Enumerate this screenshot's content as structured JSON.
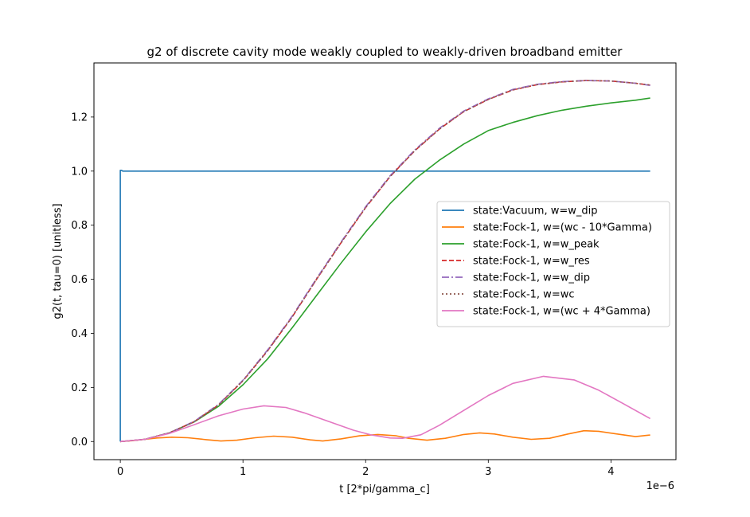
{
  "chart_data": {
    "type": "line",
    "title": "g2 of discrete cavity mode weakly coupled to weakly-driven broadband emitter",
    "xlabel": "t [2*pi/gamma_c]",
    "ylabel": "g2(t, tau=0) [unitless]",
    "x_offset_label": "1e−6",
    "xlim": [
      -2.15e-07,
      4.53e-06
    ],
    "ylim": [
      -0.067,
      1.4
    ],
    "xticks": [
      0,
      1e-06,
      2e-06,
      3e-06,
      4e-06
    ],
    "xtick_labels": [
      "0",
      "1",
      "2",
      "3",
      "4"
    ],
    "yticks": [
      0.0,
      0.2,
      0.4,
      0.6,
      0.8,
      1.0,
      1.2
    ],
    "ytick_labels": [
      "0.0",
      "0.2",
      "0.4",
      "0.6",
      "0.8",
      "1.0",
      "1.2"
    ],
    "grid": false,
    "legend_position": "center-right",
    "series": [
      {
        "name": "state:Vacuum, w=w_dip",
        "color": "#1f77b4",
        "dash": "solid",
        "x": [
          0,
          0,
          1e-08,
          2e-08,
          2e-07,
          1e-06,
          2e-06,
          3e-06,
          4e-06,
          4.32e-06
        ],
        "y": [
          0,
          1.003,
          1.003,
          1.0,
          1.0,
          1.0,
          1.0,
          1.0,
          1.0,
          1.0
        ]
      },
      {
        "name": "state:Fock-1, w=(wc - 10*Gamma)",
        "color": "#ff7f0e",
        "dash": "solid",
        "x": [
          0,
          1e-07,
          2e-07,
          3e-07,
          4.2e-07,
          5.5e-07,
          7e-07,
          8.2e-07,
          9.5e-07,
          1.1e-06,
          1.25e-06,
          1.4e-06,
          1.55e-06,
          1.65e-06,
          1.8e-06,
          1.95e-06,
          2.1e-06,
          2.25e-06,
          2.35e-06,
          2.5e-06,
          2.65e-06,
          2.8e-06,
          2.93e-06,
          3.05e-06,
          3.2e-06,
          3.35e-06,
          3.5e-06,
          3.65e-06,
          3.78e-06,
          3.9e-06,
          4.05e-06,
          4.2e-06,
          4.32e-06
        ],
        "y": [
          0,
          0.003,
          0.008,
          0.013,
          0.016,
          0.014,
          0.007,
          0.002,
          0.005,
          0.014,
          0.02,
          0.016,
          0.006,
          0.002,
          0.01,
          0.021,
          0.026,
          0.021,
          0.012,
          0.005,
          0.012,
          0.026,
          0.032,
          0.028,
          0.016,
          0.008,
          0.012,
          0.028,
          0.04,
          0.038,
          0.028,
          0.018,
          0.024
        ]
      },
      {
        "name": "state:Fock-1, w=w_peak",
        "color": "#2ca02c",
        "dash": "solid",
        "x": [
          0,
          2e-07,
          4e-07,
          6e-07,
          8e-07,
          1e-06,
          1.2e-06,
          1.4e-06,
          1.6e-06,
          1.8e-06,
          2e-06,
          2.2e-06,
          2.4e-06,
          2.6e-06,
          2.8e-06,
          3e-06,
          3.2e-06,
          3.4e-06,
          3.6e-06,
          3.8e-06,
          4e-06,
          4.2e-06,
          4.32e-06
        ],
        "y": [
          0,
          0.008,
          0.032,
          0.072,
          0.13,
          0.21,
          0.305,
          0.42,
          0.54,
          0.66,
          0.775,
          0.88,
          0.97,
          1.04,
          1.1,
          1.15,
          1.18,
          1.205,
          1.225,
          1.24,
          1.252,
          1.262,
          1.27
        ]
      },
      {
        "name": "state:Fock-1, w=w_res",
        "color": "#d62728",
        "dash": "dashed",
        "x": [
          0,
          2e-07,
          4e-07,
          6e-07,
          8e-07,
          1e-06,
          1.2e-06,
          1.4e-06,
          1.6e-06,
          1.8e-06,
          2e-06,
          2.2e-06,
          2.4e-06,
          2.6e-06,
          2.8e-06,
          3e-06,
          3.2e-06,
          3.4e-06,
          3.6e-06,
          3.8e-06,
          4e-06,
          4.2e-06,
          4.32e-06
        ],
        "y": [
          0,
          0.008,
          0.032,
          0.073,
          0.135,
          0.225,
          0.335,
          0.46,
          0.6,
          0.735,
          0.865,
          0.98,
          1.075,
          1.155,
          1.22,
          1.265,
          1.3,
          1.32,
          1.33,
          1.335,
          1.333,
          1.325,
          1.318
        ]
      },
      {
        "name": "state:Fock-1, w=w_dip",
        "color": "#9467bd",
        "dash": "dashdot",
        "x": [
          0,
          2e-07,
          4e-07,
          6e-07,
          8e-07,
          1e-06,
          1.2e-06,
          1.4e-06,
          1.6e-06,
          1.8e-06,
          2e-06,
          2.2e-06,
          2.4e-06,
          2.6e-06,
          2.8e-06,
          3e-06,
          3.2e-06,
          3.4e-06,
          3.6e-06,
          3.8e-06,
          4e-06,
          4.2e-06,
          4.32e-06
        ],
        "y": [
          0,
          0.008,
          0.032,
          0.074,
          0.137,
          0.227,
          0.338,
          0.463,
          0.603,
          0.738,
          0.868,
          0.983,
          1.078,
          1.158,
          1.222,
          1.267,
          1.302,
          1.321,
          1.331,
          1.335,
          1.333,
          1.325,
          1.317
        ]
      },
      {
        "name": "state:Fock-1, w=wc",
        "color": "#8c564b",
        "dash": "dotted",
        "x": [
          0,
          2e-07,
          4e-07,
          6e-07,
          8e-07,
          1e-06,
          1.2e-06,
          1.4e-06,
          1.6e-06,
          1.8e-06,
          2e-06,
          2.2e-06,
          2.4e-06,
          2.6e-06,
          2.8e-06,
          3e-06,
          3.2e-06,
          3.4e-06,
          3.6e-06,
          3.8e-06,
          4e-06,
          4.2e-06,
          4.32e-06
        ],
        "y": [
          0,
          0.008,
          0.032,
          0.073,
          0.135,
          0.225,
          0.335,
          0.46,
          0.6,
          0.735,
          0.865,
          0.98,
          1.075,
          1.155,
          1.22,
          1.265,
          1.3,
          1.32,
          1.33,
          1.335,
          1.333,
          1.325,
          1.318
        ]
      },
      {
        "name": "state:Fock-1, w=(wc + 4*Gamma)",
        "color": "#e377c2",
        "dash": "solid",
        "x": [
          0,
          2e-07,
          4e-07,
          6e-07,
          8e-07,
          1e-06,
          1.17e-06,
          1.35e-06,
          1.5e-06,
          1.7e-06,
          1.9e-06,
          2.05e-06,
          2.2e-06,
          2.3e-06,
          2.45e-06,
          2.6e-06,
          2.8e-06,
          3e-06,
          3.2e-06,
          3.45e-06,
          3.7e-06,
          3.9e-06,
          4.1e-06,
          4.32e-06
        ],
        "y": [
          0,
          0.008,
          0.03,
          0.062,
          0.095,
          0.12,
          0.132,
          0.126,
          0.106,
          0.074,
          0.042,
          0.024,
          0.013,
          0.012,
          0.025,
          0.06,
          0.115,
          0.17,
          0.215,
          0.241,
          0.228,
          0.19,
          0.14,
          0.085
        ]
      }
    ]
  }
}
